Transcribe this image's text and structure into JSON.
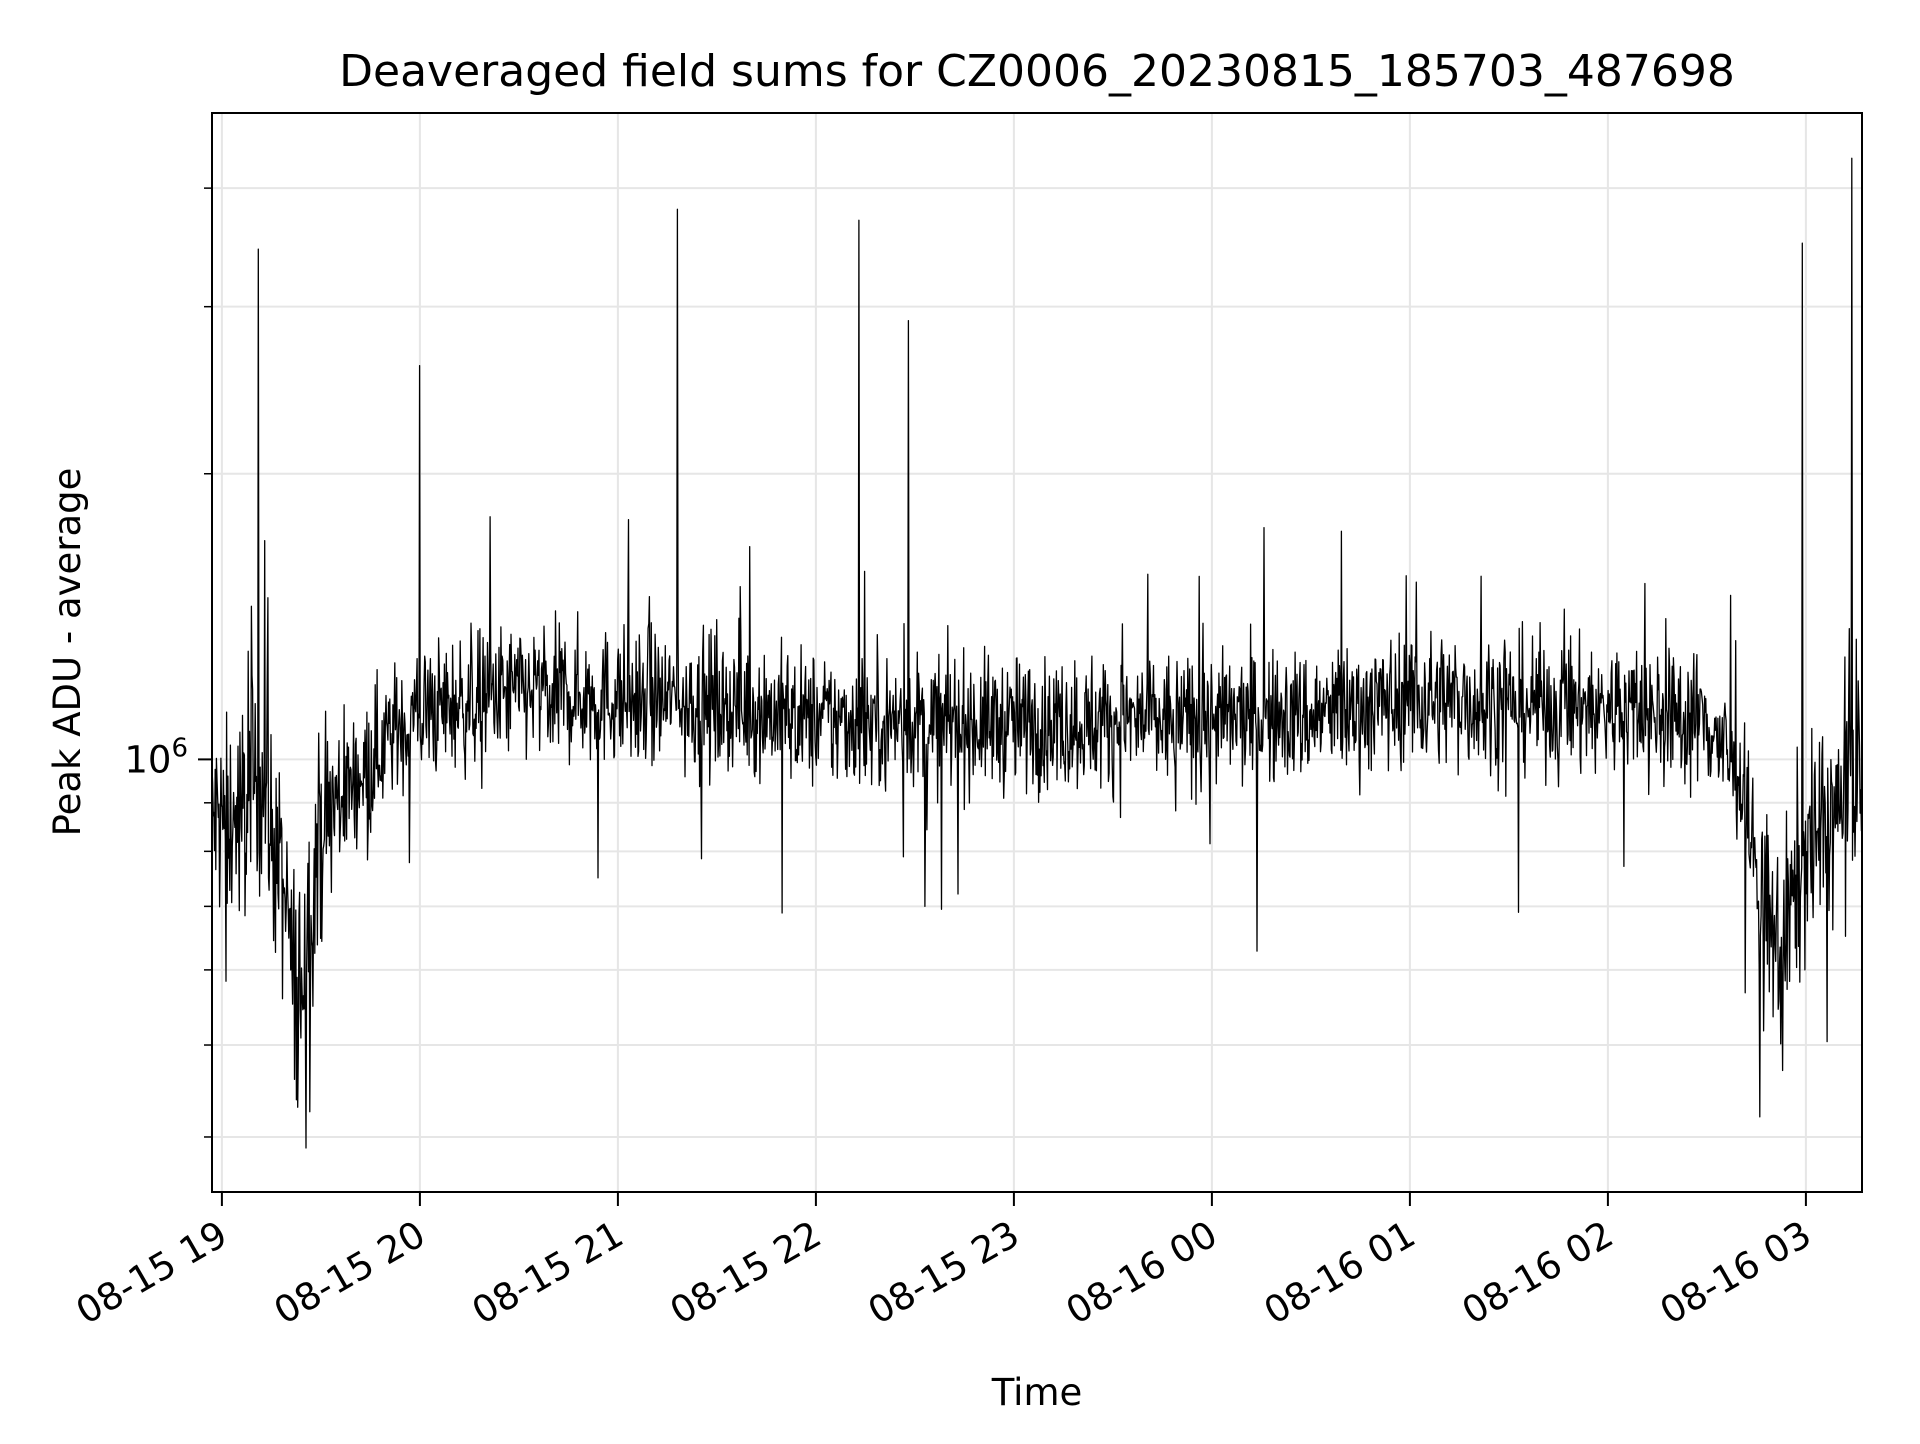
{
  "chart_data": {
    "type": "line",
    "title": "Deaveraged field sums for CZ0006_20230815_185703_487698",
    "xlabel": "Time",
    "ylabel": "Peak ADU - average",
    "y_scale": "log",
    "grid": true,
    "legend": "none",
    "line_color": "#000000",
    "grid_color": "#e6e6e6",
    "x_range": [
      "2023-08-15 18:57",
      "2023-08-16 03:17"
    ],
    "ylim": [
      350000,
      4800000
    ],
    "x_ticks": [
      {
        "t": "2023-08-15 19:00",
        "label": "08-15 19"
      },
      {
        "t": "2023-08-15 20:00",
        "label": "08-15 20"
      },
      {
        "t": "2023-08-15 21:00",
        "label": "08-15 21"
      },
      {
        "t": "2023-08-15 22:00",
        "label": "08-15 22"
      },
      {
        "t": "2023-08-15 23:00",
        "label": "08-15 23"
      },
      {
        "t": "2023-08-16 00:00",
        "label": "08-16 00"
      },
      {
        "t": "2023-08-16 01:00",
        "label": "08-16 01"
      },
      {
        "t": "2023-08-16 02:00",
        "label": "08-16 02"
      },
      {
        "t": "2023-08-16 03:00",
        "label": "08-16 03"
      }
    ],
    "y_major_ticks": [
      {
        "value": 1000000,
        "label": "10",
        "exp": "6"
      }
    ],
    "y_minor_ticks": [
      400000,
      500000,
      600000,
      700000,
      800000,
      900000,
      2000000,
      3000000,
      4000000
    ],
    "series": [
      {
        "baseline": [
          {
            "t": "2023-08-15 18:57",
            "y": 860000
          },
          {
            "t": "2023-08-15 19:05",
            "y": 860000
          },
          {
            "t": "2023-08-15 19:12",
            "y": 950000
          },
          {
            "t": "2023-08-15 19:18",
            "y": 740000
          },
          {
            "t": "2023-08-15 19:23",
            "y": 560000
          },
          {
            "t": "2023-08-15 19:30",
            "y": 850000
          },
          {
            "t": "2023-08-15 19:40",
            "y": 950000
          },
          {
            "t": "2023-08-15 19:50",
            "y": 1050000
          },
          {
            "t": "2023-08-15 20:00",
            "y": 1120000
          },
          {
            "t": "2023-08-15 20:30",
            "y": 1180000
          },
          {
            "t": "2023-08-15 21:00",
            "y": 1160000
          },
          {
            "t": "2023-08-15 21:30",
            "y": 1150000
          },
          {
            "t": "2023-08-15 22:00",
            "y": 1100000
          },
          {
            "t": "2023-08-15 23:00",
            "y": 1090000
          },
          {
            "t": "2023-08-16 00:00",
            "y": 1100000
          },
          {
            "t": "2023-08-16 00:30",
            "y": 1110000
          },
          {
            "t": "2023-08-16 01:00",
            "y": 1160000
          },
          {
            "t": "2023-08-16 01:30",
            "y": 1150000
          },
          {
            "t": "2023-08-16 02:00",
            "y": 1130000
          },
          {
            "t": "2023-08-16 02:30",
            "y": 1100000
          },
          {
            "t": "2023-08-16 02:40",
            "y": 950000
          },
          {
            "t": "2023-08-16 02:47",
            "y": 700000
          },
          {
            "t": "2023-08-16 02:52",
            "y": 620000
          },
          {
            "t": "2023-08-16 03:00",
            "y": 800000
          },
          {
            "t": "2023-08-16 03:10",
            "y": 880000
          },
          {
            "t": "2023-08-16 03:17",
            "y": 1050000
          }
        ],
        "spikes": [
          {
            "t": "2023-08-15 19:11",
            "y": 3450000
          },
          {
            "t": "2023-08-15 19:09",
            "y": 1780000
          },
          {
            "t": "2023-08-15 19:13",
            "y": 1700000
          },
          {
            "t": "2023-08-15 19:09",
            "y": 1450000
          },
          {
            "t": "2023-08-15 19:08",
            "y": 1300000
          },
          {
            "t": "2023-08-15 19:14",
            "y": 1480000
          },
          {
            "t": "2023-08-15 20:00",
            "y": 2600000
          },
          {
            "t": "2023-08-15 21:18",
            "y": 3800000
          },
          {
            "t": "2023-08-15 22:13",
            "y": 3700000
          },
          {
            "t": "2023-08-15 22:28",
            "y": 2900000
          },
          {
            "t": "2023-08-16 02:59",
            "y": 3500000
          },
          {
            "t": "2023-08-16 03:14",
            "y": 4300000
          },
          {
            "t": "2023-08-16 03:17",
            "y": 1500000
          }
        ],
        "dips": [
          {
            "t": "2023-08-15 19:23",
            "y": 430000
          },
          {
            "t": "2023-08-15 19:22",
            "y": 460000
          },
          {
            "t": "2023-08-15 20:54",
            "y": 750000
          },
          {
            "t": "2023-08-15 22:33",
            "y": 700000
          },
          {
            "t": "2023-08-16 01:33",
            "y": 690000
          },
          {
            "t": "2023-08-16 02:46",
            "y": 420000
          },
          {
            "t": "2023-08-16 02:53",
            "y": 470000
          }
        ]
      }
    ]
  }
}
